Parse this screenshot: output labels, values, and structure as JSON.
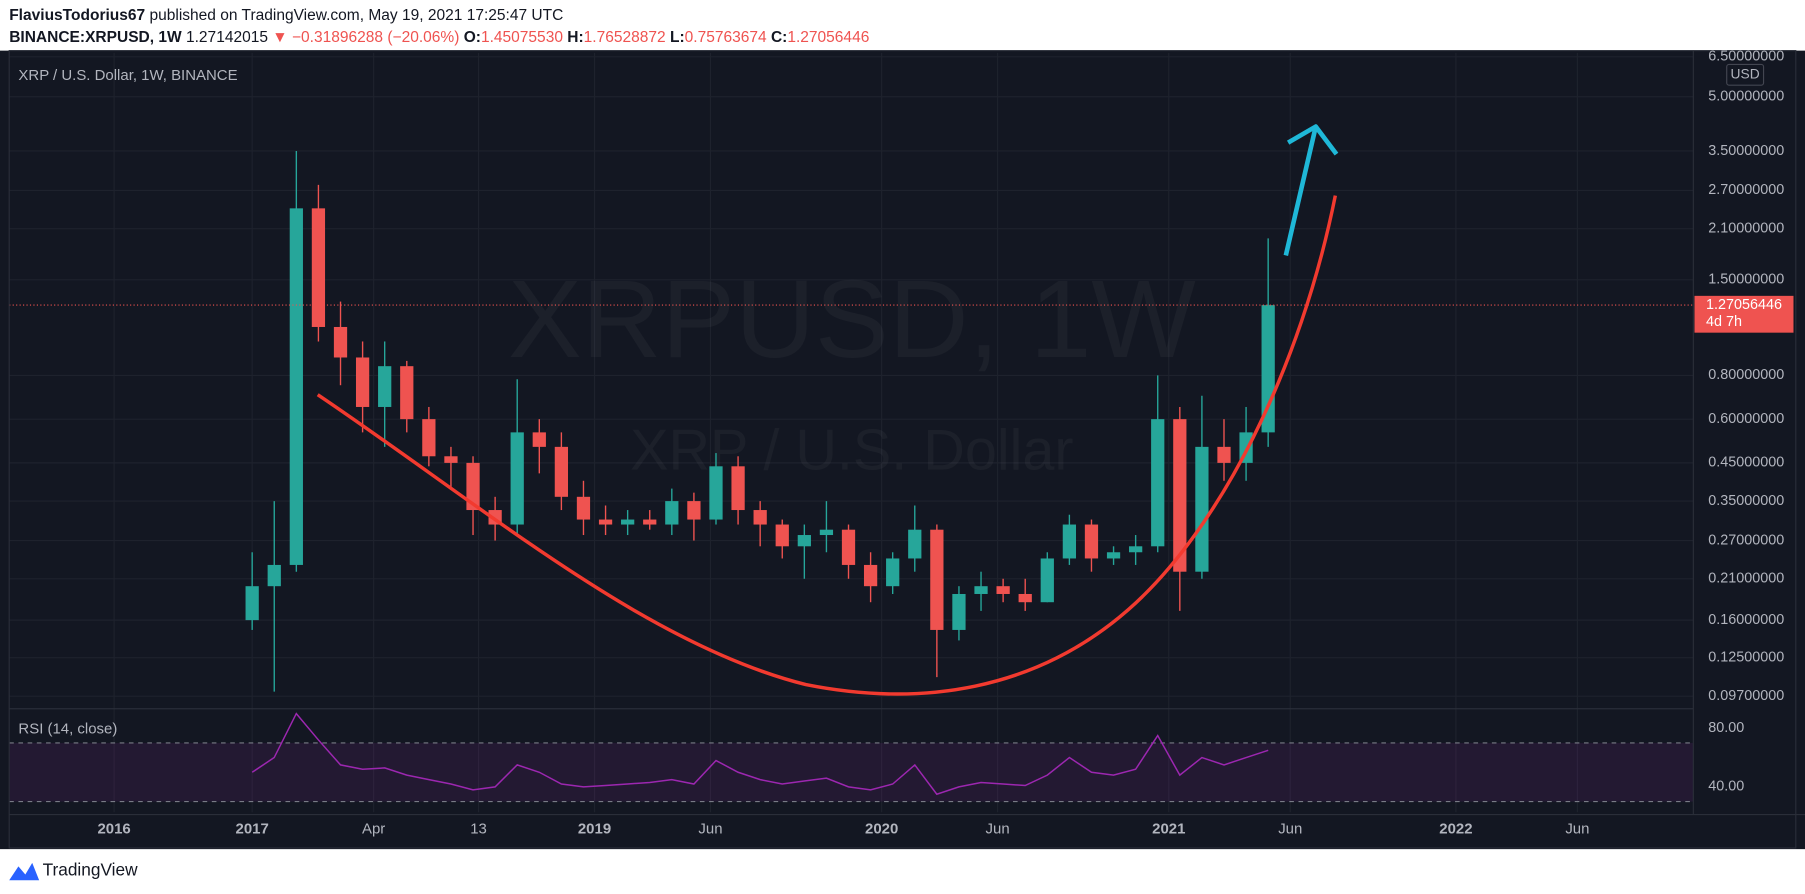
{
  "header": {
    "publisher": "FlaviusTodorius67",
    "published": "published on TradingView.com, May 19, 2021 17:25:47 UTC",
    "symbol": "BINANCE:XRPUSD, 1W",
    "price": "1.27142015",
    "change": "−0.31896288 (−20.06%)",
    "o_label": "O:",
    "o_value": "1.45075530",
    "h_label": "H:",
    "h_value": "1.76528872",
    "l_label": "L:",
    "l_value": "0.75763674",
    "c_label": "C:",
    "c_value": "1.27056446"
  },
  "chart_data": {
    "type": "candlestick",
    "title": "XRP / U.S. Dollar, 1W, BINANCE",
    "watermark": "XRPUSD, 1W",
    "watermark_subtitle": "XRP / U.S. Dollar",
    "currency": "USD",
    "log_scale": true,
    "grid": true,
    "up_color": "#26a69a",
    "down_color": "#ef5350",
    "x": [
      0,
      4,
      8,
      12,
      16,
      20,
      24,
      28,
      32,
      36,
      40,
      44,
      48,
      52,
      56,
      60,
      64,
      68,
      72,
      76,
      80,
      84,
      88,
      92,
      96,
      100,
      104,
      108,
      112,
      116,
      120,
      124,
      128,
      132,
      136,
      140,
      144,
      148,
      152,
      156,
      160,
      164,
      168,
      172,
      176,
      180,
      184
    ],
    "open": [
      0.16,
      0.2,
      0.23,
      2.4,
      1.1,
      0.9,
      0.65,
      0.85,
      0.6,
      0.47,
      0.45,
      0.33,
      0.3,
      0.55,
      0.5,
      0.36,
      0.31,
      0.3,
      0.31,
      0.3,
      0.35,
      0.31,
      0.44,
      0.33,
      0.3,
      0.26,
      0.28,
      0.29,
      0.23,
      0.2,
      0.24,
      0.29,
      0.15,
      0.19,
      0.2,
      0.19,
      0.18,
      0.24,
      0.3,
      0.24,
      0.25,
      0.26,
      0.6,
      0.22,
      0.5,
      0.45,
      0.55
    ],
    "high": [
      0.25,
      0.35,
      3.5,
      2.8,
      1.3,
      1.0,
      1.0,
      0.88,
      0.65,
      0.5,
      0.47,
      0.36,
      0.78,
      0.6,
      0.55,
      0.4,
      0.34,
      0.33,
      0.33,
      0.38,
      0.37,
      0.48,
      0.47,
      0.35,
      0.31,
      0.3,
      0.35,
      0.3,
      0.25,
      0.25,
      0.34,
      0.3,
      0.2,
      0.22,
      0.21,
      0.21,
      0.25,
      0.32,
      0.31,
      0.26,
      0.28,
      0.8,
      0.65,
      0.7,
      0.6,
      0.65,
      1.97
    ],
    "low": [
      0.15,
      0.1,
      0.22,
      1.0,
      0.75,
      0.55,
      0.5,
      0.55,
      0.44,
      0.38,
      0.28,
      0.27,
      0.28,
      0.42,
      0.33,
      0.28,
      0.28,
      0.28,
      0.29,
      0.28,
      0.27,
      0.3,
      0.3,
      0.26,
      0.24,
      0.21,
      0.25,
      0.21,
      0.18,
      0.19,
      0.22,
      0.11,
      0.14,
      0.17,
      0.18,
      0.17,
      0.18,
      0.23,
      0.22,
      0.23,
      0.23,
      0.25,
      0.17,
      0.21,
      0.4,
      0.4,
      0.5
    ],
    "close": [
      0.2,
      0.23,
      2.4,
      1.1,
      0.9,
      0.65,
      0.85,
      0.6,
      0.47,
      0.45,
      0.33,
      0.3,
      0.55,
      0.5,
      0.36,
      0.31,
      0.3,
      0.31,
      0.3,
      0.35,
      0.31,
      0.44,
      0.33,
      0.3,
      0.26,
      0.28,
      0.29,
      0.23,
      0.2,
      0.24,
      0.29,
      0.15,
      0.19,
      0.2,
      0.19,
      0.18,
      0.24,
      0.3,
      0.24,
      0.25,
      0.26,
      0.6,
      0.22,
      0.5,
      0.45,
      0.55,
      1.27
    ],
    "xlim": [
      -44,
      261
    ],
    "xticks": [
      {
        "value": -25,
        "label": "2016"
      },
      {
        "value": 0,
        "label": "2017"
      },
      {
        "value": 22,
        "label": "Apr"
      },
      {
        "value": 41,
        "label": "13"
      },
      {
        "value": 62,
        "label": "2019"
      },
      {
        "value": 83,
        "label": "Jun"
      },
      {
        "value": 114,
        "label": "2020"
      },
      {
        "value": 135,
        "label": "Jun"
      },
      {
        "value": 166,
        "label": "2021"
      },
      {
        "value": 188,
        "label": "Jun"
      },
      {
        "value": 218,
        "label": "2022"
      },
      {
        "value": 240,
        "label": "Jun"
      }
    ],
    "ylim": [
      0.09,
      6.67
    ],
    "yticks": [
      {
        "value": 6.5,
        "label": "6.50000000"
      },
      {
        "value": 5,
        "label": "5.00000000"
      },
      {
        "value": 3.5,
        "label": "3.50000000"
      },
      {
        "value": 2.7,
        "label": "2.70000000"
      },
      {
        "value": 2.1,
        "label": "2.10000000"
      },
      {
        "value": 1.5,
        "label": "1.50000000"
      },
      {
        "value": 0.8,
        "label": "0.80000000"
      },
      {
        "value": 0.6,
        "label": "0.60000000"
      },
      {
        "value": 0.45,
        "label": "0.45000000"
      },
      {
        "value": 0.35,
        "label": "0.35000000"
      },
      {
        "value": 0.27,
        "label": "0.27000000"
      },
      {
        "value": 0.21,
        "label": "0.21000000"
      },
      {
        "value": 0.16,
        "label": "0.16000000"
      },
      {
        "value": 0.125,
        "label": "0.12500000"
      },
      {
        "value": 0.097,
        "label": "0.09700000"
      }
    ],
    "last_price": 1.27056446,
    "countdown": "4d 7h",
    "indicator": {
      "name": "RSI (14, close)",
      "color": "#9c27b0",
      "values": [
        50,
        60,
        90,
        72,
        55,
        52,
        53,
        48,
        45,
        42,
        38,
        40,
        55,
        50,
        42,
        40,
        41,
        42,
        43,
        45,
        42,
        58,
        50,
        45,
        42,
        44,
        46,
        40,
        38,
        42,
        55,
        35,
        40,
        43,
        42,
        41,
        48,
        60,
        50,
        48,
        52,
        75,
        48,
        60,
        55,
        60,
        65
      ],
      "ylim": [
        22.7,
        92.5
      ],
      "yticks": [
        {
          "value": 80,
          "label": "80.00"
        },
        {
          "value": 40,
          "label": "40.00"
        }
      ],
      "bands": [
        30,
        70
      ]
    }
  }
}
